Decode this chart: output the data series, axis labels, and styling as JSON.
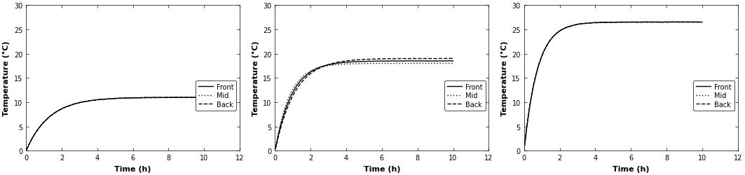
{
  "panels": [
    {
      "final_front": 11.0,
      "tc_front": 1.3,
      "final_mid": 11.0,
      "tc_mid": 1.3,
      "final_back": 11.0,
      "tc_back": 1.3,
      "ylim": [
        0,
        30
      ],
      "yticks": [
        0,
        5,
        10,
        15,
        20,
        25,
        30
      ],
      "xlim": [
        0,
        12
      ],
      "xticks": [
        0,
        2,
        4,
        6,
        8,
        10,
        12
      ]
    },
    {
      "final_front": 18.5,
      "tc_front": 0.95,
      "final_mid": 18.0,
      "tc_mid": 0.82,
      "final_back": 19.0,
      "tc_back": 1.1,
      "ylim": [
        0,
        30
      ],
      "yticks": [
        0,
        5,
        10,
        15,
        20,
        25,
        30
      ],
      "xlim": [
        0,
        12
      ],
      "xticks": [
        0,
        2,
        4,
        6,
        8,
        10,
        12
      ]
    },
    {
      "final_front": 26.5,
      "tc_front": 0.75,
      "final_mid": 26.5,
      "tc_mid": 0.75,
      "final_back": 26.5,
      "tc_back": 0.75,
      "ylim": [
        0,
        30
      ],
      "yticks": [
        0,
        5,
        10,
        15,
        20,
        25,
        30
      ],
      "xlim": [
        0,
        12
      ],
      "xticks": [
        0,
        2,
        4,
        6,
        8,
        10,
        12
      ]
    }
  ],
  "xlabel": "Time (h)",
  "ylabel": "Temperature (°C)",
  "legend_labels": [
    "Front",
    "Mid",
    "Back"
  ],
  "line_color": "#000000",
  "bg_color": "#ffffff",
  "font_size": 8,
  "legend_fontsize": 7,
  "tick_fontsize": 7,
  "figsize": [
    10.63,
    2.51
  ],
  "dpi": 100
}
